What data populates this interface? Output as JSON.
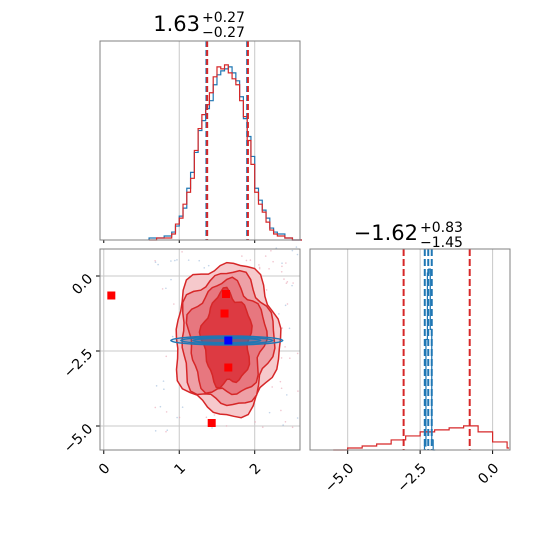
{
  "chart_data": {
    "type": "corner",
    "colors": {
      "blue": "#1f77b4",
      "red": "#d62728",
      "marker_blue": "#0000ff",
      "marker_red": "#ff0000",
      "grid": "#c8c8c8"
    },
    "grid": true,
    "params": [
      {
        "value": "1.63",
        "upper": "+0.27",
        "lower": "−0.27"
      },
      {
        "value": "−1.62",
        "upper": "+0.83",
        "lower": "−1.45"
      }
    ],
    "panels": [
      {
        "id": "hist-param1",
        "type": "histogram",
        "xlim": [
          -0.05,
          2.6
        ],
        "ylim": [
          0,
          1
        ],
        "series": [
          {
            "name": "",
            "color": "#1f77b4",
            "x": [
              0.6,
              0.7,
              0.8,
              0.9,
              0.95,
              1.0,
              1.05,
              1.1,
              1.15,
              1.2,
              1.25,
              1.3,
              1.35,
              1.4,
              1.45,
              1.5,
              1.55,
              1.6,
              1.65,
              1.7,
              1.75,
              1.8,
              1.85,
              1.9,
              1.95,
              2.0,
              2.05,
              2.1,
              2.15,
              2.2,
              2.25,
              2.3,
              2.4,
              2.5,
              2.6
            ],
            "y": [
              0.01,
              0.01,
              0.02,
              0.04,
              0.07,
              0.12,
              0.16,
              0.26,
              0.34,
              0.44,
              0.55,
              0.6,
              0.66,
              0.7,
              0.78,
              0.83,
              0.85,
              0.86,
              0.87,
              0.84,
              0.8,
              0.72,
              0.61,
              0.52,
              0.42,
              0.26,
              0.2,
              0.15,
              0.11,
              0.06,
              0.04,
              0.03,
              0.01,
              0.0,
              0.0
            ]
          },
          {
            "name": "",
            "color": "#d62728",
            "x": [
              0.6,
              0.7,
              0.8,
              0.9,
              0.95,
              1.0,
              1.05,
              1.1,
              1.15,
              1.2,
              1.25,
              1.3,
              1.35,
              1.4,
              1.45,
              1.5,
              1.55,
              1.6,
              1.65,
              1.7,
              1.75,
              1.8,
              1.85,
              1.9,
              1.95,
              2.0,
              2.05,
              2.1,
              2.15,
              2.2,
              2.25,
              2.3,
              2.4,
              2.5,
              2.6
            ],
            "y": [
              0.0,
              0.01,
              0.01,
              0.03,
              0.08,
              0.11,
              0.18,
              0.24,
              0.31,
              0.45,
              0.56,
              0.63,
              0.68,
              0.74,
              0.82,
              0.87,
              0.86,
              0.88,
              0.84,
              0.81,
              0.78,
              0.7,
              0.62,
              0.5,
              0.38,
              0.24,
              0.18,
              0.14,
              0.09,
              0.05,
              0.03,
              0.02,
              0.01,
              0.0,
              0.0
            ]
          }
        ],
        "vlines": [
          {
            "x": 1.36,
            "color": "#1f77b4"
          },
          {
            "x": 1.37,
            "color": "#d62728"
          },
          {
            "x": 1.9,
            "color": "#1f77b4"
          },
          {
            "x": 1.91,
            "color": "#d62728"
          }
        ]
      },
      {
        "id": "hist-param2",
        "type": "histogram",
        "xlim": [
          -6.3,
          0.6
        ],
        "ylim": [
          0,
          1
        ],
        "series": [
          {
            "name": "",
            "color": "#1f77b4",
            "x": [
              -2.35,
              -2.3,
              -2.25,
              -2.2,
              -2.15,
              -2.1,
              -2.05
            ],
            "y": [
              0.02,
              0.55,
              0.88,
              0.9,
              0.6,
              0.05,
              0.0
            ]
          },
          {
            "name": "",
            "color": "#d62728",
            "x": [
              -5.5,
              -5.0,
              -4.5,
              -4.0,
              -3.5,
              -3.0,
              -2.5,
              -2.0,
              -1.5,
              -1.0,
              -0.5,
              0.0,
              0.5
            ],
            "y": [
              0.0,
              0.01,
              0.02,
              0.03,
              0.05,
              0.07,
              0.09,
              0.1,
              0.11,
              0.12,
              0.09,
              0.04,
              0.01
            ]
          }
        ],
        "vlines": [
          {
            "x": -3.07,
            "color": "#d62728"
          },
          {
            "x": -2.34,
            "color": "#1f77b4"
          },
          {
            "x": -2.22,
            "color": "#1f77b4"
          },
          {
            "x": -2.1,
            "color": "#1f77b4"
          },
          {
            "x": -0.79,
            "color": "#d62728"
          }
        ]
      },
      {
        "id": "scatter-2d",
        "type": "scatter",
        "xlim": [
          -0.05,
          2.6
        ],
        "ylim": [
          -5.8,
          0.9
        ],
        "xticks": [
          0,
          1,
          2
        ],
        "yticks": [
          0.0,
          -2.5,
          -5.0
        ],
        "x_ticklabels": [
          "0",
          "1",
          "2"
        ],
        "y_ticklabels": [
          "0.0",
          "−2.5",
          "−5.0"
        ],
        "blue_marker": {
          "x": 1.65,
          "y": -2.15
        },
        "red_markers": [
          {
            "x": 0.1,
            "y": -0.65
          },
          {
            "x": 1.62,
            "y": -0.6
          },
          {
            "x": 1.6,
            "y": -1.25
          },
          {
            "x": 1.65,
            "y": -3.05
          },
          {
            "x": 1.43,
            "y": -4.9
          }
        ]
      }
    ],
    "axis_hist2": {
      "xticks": [
        -5.0,
        -2.5,
        0.0
      ],
      "x_ticklabels": [
        "−5.0",
        "−2.5",
        "0.0"
      ]
    }
  }
}
